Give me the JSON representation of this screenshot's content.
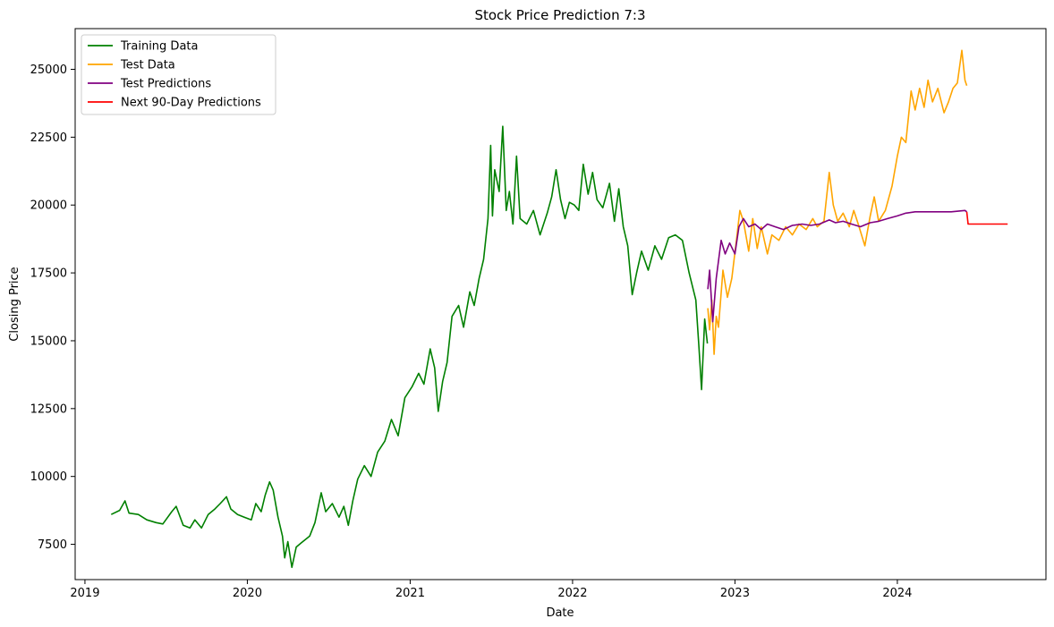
{
  "chart_data": {
    "type": "line",
    "title": "Stock Price Prediction 7:3",
    "xlabel": "Date",
    "ylabel": "Closing Price",
    "xlim": [
      "2018-12-10",
      "2024-11-30"
    ],
    "ylim": [
      6200,
      26500
    ],
    "x_ticks": [
      {
        "value": "2019-01-01",
        "label": "2019"
      },
      {
        "value": "2020-01-01",
        "label": "2020"
      },
      {
        "value": "2021-01-01",
        "label": "2021"
      },
      {
        "value": "2022-01-01",
        "label": "2022"
      },
      {
        "value": "2023-01-01",
        "label": "2023"
      },
      {
        "value": "2024-01-01",
        "label": "2024"
      }
    ],
    "y_ticks": [
      {
        "value": 7500,
        "label": "7500"
      },
      {
        "value": 10000,
        "label": "10000"
      },
      {
        "value": 12500,
        "label": "12500"
      },
      {
        "value": 15000,
        "label": "15000"
      },
      {
        "value": 17500,
        "label": "17500"
      },
      {
        "value": 20000,
        "label": "20000"
      },
      {
        "value": 22500,
        "label": "22500"
      },
      {
        "value": 25000,
        "label": "25000"
      }
    ],
    "grid": false,
    "legend_position": "top-left",
    "series": [
      {
        "name": "Training Data",
        "color": "#008000",
        "points": [
          [
            "2019-03-01",
            8600
          ],
          [
            "2019-03-20",
            8750
          ],
          [
            "2019-04-01",
            9100
          ],
          [
            "2019-04-10",
            8650
          ],
          [
            "2019-05-01",
            8600
          ],
          [
            "2019-05-20",
            8400
          ],
          [
            "2019-06-10",
            8300
          ],
          [
            "2019-06-25",
            8250
          ],
          [
            "2019-07-15",
            8700
          ],
          [
            "2019-07-25",
            8900
          ],
          [
            "2019-08-10",
            8200
          ],
          [
            "2019-08-25",
            8100
          ],
          [
            "2019-09-05",
            8400
          ],
          [
            "2019-09-20",
            8100
          ],
          [
            "2019-10-05",
            8600
          ],
          [
            "2019-10-20",
            8800
          ],
          [
            "2019-11-01",
            9000
          ],
          [
            "2019-11-15",
            9250
          ],
          [
            "2019-11-25",
            8800
          ],
          [
            "2019-12-10",
            8600
          ],
          [
            "2019-12-25",
            8500
          ],
          [
            "2020-01-10",
            8400
          ],
          [
            "2020-01-20",
            9000
          ],
          [
            "2020-02-01",
            8700
          ],
          [
            "2020-02-10",
            9300
          ],
          [
            "2020-02-20",
            9800
          ],
          [
            "2020-02-28",
            9500
          ],
          [
            "2020-03-10",
            8500
          ],
          [
            "2020-03-20",
            7800
          ],
          [
            "2020-03-25",
            7000
          ],
          [
            "2020-04-01",
            7600
          ],
          [
            "2020-04-10",
            6650
          ],
          [
            "2020-04-20",
            7400
          ],
          [
            "2020-05-01",
            7550
          ],
          [
            "2020-05-20",
            7800
          ],
          [
            "2020-06-01",
            8300
          ],
          [
            "2020-06-15",
            9400
          ],
          [
            "2020-06-25",
            8700
          ],
          [
            "2020-07-10",
            9000
          ],
          [
            "2020-07-25",
            8500
          ],
          [
            "2020-08-05",
            8900
          ],
          [
            "2020-08-15",
            8200
          ],
          [
            "2020-08-25",
            9100
          ],
          [
            "2020-09-05",
            9900
          ],
          [
            "2020-09-20",
            10400
          ],
          [
            "2020-10-05",
            10000
          ],
          [
            "2020-10-20",
            10900
          ],
          [
            "2020-11-05",
            11300
          ],
          [
            "2020-11-20",
            12100
          ],
          [
            "2020-12-05",
            11500
          ],
          [
            "2020-12-20",
            12900
          ],
          [
            "2021-01-05",
            13300
          ],
          [
            "2021-01-20",
            13800
          ],
          [
            "2021-02-01",
            13400
          ],
          [
            "2021-02-15",
            14700
          ],
          [
            "2021-02-25",
            14000
          ],
          [
            "2021-03-05",
            12400
          ],
          [
            "2021-03-15",
            13500
          ],
          [
            "2021-03-25",
            14200
          ],
          [
            "2021-04-05",
            15900
          ],
          [
            "2021-04-20",
            16300
          ],
          [
            "2021-05-01",
            15500
          ],
          [
            "2021-05-15",
            16800
          ],
          [
            "2021-05-25",
            16300
          ],
          [
            "2021-06-05",
            17300
          ],
          [
            "2021-06-15",
            18000
          ],
          [
            "2021-06-25",
            19500
          ],
          [
            "2021-07-01",
            22200
          ],
          [
            "2021-07-05",
            19600
          ],
          [
            "2021-07-10",
            21300
          ],
          [
            "2021-07-20",
            20500
          ],
          [
            "2021-07-28",
            22900
          ],
          [
            "2021-08-05",
            19800
          ],
          [
            "2021-08-12",
            20500
          ],
          [
            "2021-08-20",
            19300
          ],
          [
            "2021-08-28",
            21800
          ],
          [
            "2021-09-05",
            19500
          ],
          [
            "2021-09-20",
            19300
          ],
          [
            "2021-10-05",
            19800
          ],
          [
            "2021-10-20",
            18900
          ],
          [
            "2021-11-05",
            19700
          ],
          [
            "2021-11-15",
            20300
          ],
          [
            "2021-11-25",
            21300
          ],
          [
            "2021-12-05",
            20200
          ],
          [
            "2021-12-15",
            19500
          ],
          [
            "2021-12-25",
            20100
          ],
          [
            "2022-01-05",
            20000
          ],
          [
            "2022-01-15",
            19800
          ],
          [
            "2022-01-25",
            21500
          ],
          [
            "2022-02-05",
            20400
          ],
          [
            "2022-02-15",
            21200
          ],
          [
            "2022-02-25",
            20200
          ],
          [
            "2022-03-10",
            19900
          ],
          [
            "2022-03-25",
            20800
          ],
          [
            "2022-04-05",
            19400
          ],
          [
            "2022-04-15",
            20600
          ],
          [
            "2022-04-25",
            19200
          ],
          [
            "2022-05-05",
            18500
          ],
          [
            "2022-05-15",
            16700
          ],
          [
            "2022-05-25",
            17500
          ],
          [
            "2022-06-05",
            18300
          ],
          [
            "2022-06-20",
            17600
          ],
          [
            "2022-07-05",
            18500
          ],
          [
            "2022-07-20",
            18000
          ],
          [
            "2022-08-05",
            18800
          ],
          [
            "2022-08-20",
            18900
          ],
          [
            "2022-09-05",
            18700
          ],
          [
            "2022-09-20",
            17500
          ],
          [
            "2022-10-05",
            16500
          ],
          [
            "2022-10-12",
            14800
          ],
          [
            "2022-10-18",
            13200
          ],
          [
            "2022-10-25",
            15800
          ],
          [
            "2022-10-31",
            14900
          ]
        ]
      },
      {
        "name": "Test Data",
        "color": "#FFA500",
        "points": [
          [
            "2022-11-01",
            16200
          ],
          [
            "2022-11-05",
            15400
          ],
          [
            "2022-11-10",
            16500
          ],
          [
            "2022-11-15",
            14500
          ],
          [
            "2022-11-20",
            15900
          ],
          [
            "2022-11-25",
            15500
          ],
          [
            "2022-12-05",
            17600
          ],
          [
            "2022-12-15",
            16600
          ],
          [
            "2022-12-25",
            17300
          ],
          [
            "2023-01-05",
            18800
          ],
          [
            "2023-01-12",
            19800
          ],
          [
            "2023-01-20",
            19400
          ],
          [
            "2023-02-01",
            18300
          ],
          [
            "2023-02-10",
            19500
          ],
          [
            "2023-02-20",
            18400
          ],
          [
            "2023-03-01",
            19200
          ],
          [
            "2023-03-15",
            18200
          ],
          [
            "2023-03-25",
            18900
          ],
          [
            "2023-04-10",
            18700
          ],
          [
            "2023-04-25",
            19200
          ],
          [
            "2023-05-10",
            18900
          ],
          [
            "2023-05-25",
            19300
          ],
          [
            "2023-06-10",
            19100
          ],
          [
            "2023-06-25",
            19500
          ],
          [
            "2023-07-05",
            19200
          ],
          [
            "2023-07-20",
            19400
          ],
          [
            "2023-08-01",
            21200
          ],
          [
            "2023-08-10",
            20000
          ],
          [
            "2023-08-20",
            19400
          ],
          [
            "2023-09-01",
            19700
          ],
          [
            "2023-09-15",
            19200
          ],
          [
            "2023-09-25",
            19800
          ],
          [
            "2023-10-05",
            19300
          ],
          [
            "2023-10-20",
            18500
          ],
          [
            "2023-11-01",
            19600
          ],
          [
            "2023-11-10",
            20300
          ],
          [
            "2023-11-20",
            19400
          ],
          [
            "2023-12-05",
            19800
          ],
          [
            "2023-12-20",
            20700
          ],
          [
            "2024-01-01",
            21800
          ],
          [
            "2024-01-10",
            22500
          ],
          [
            "2024-01-20",
            22300
          ],
          [
            "2024-02-01",
            24200
          ],
          [
            "2024-02-10",
            23500
          ],
          [
            "2024-02-20",
            24300
          ],
          [
            "2024-03-01",
            23600
          ],
          [
            "2024-03-10",
            24600
          ],
          [
            "2024-03-20",
            23800
          ],
          [
            "2024-04-01",
            24300
          ],
          [
            "2024-04-15",
            23400
          ],
          [
            "2024-04-25",
            23800
          ],
          [
            "2024-05-05",
            24300
          ],
          [
            "2024-05-15",
            24500
          ],
          [
            "2024-05-25",
            25700
          ],
          [
            "2024-06-01",
            24600
          ],
          [
            "2024-06-05",
            24400
          ]
        ]
      },
      {
        "name": "Test Predictions",
        "color": "#800080",
        "points": [
          [
            "2022-11-01",
            16900
          ],
          [
            "2022-11-05",
            17600
          ],
          [
            "2022-11-12",
            15700
          ],
          [
            "2022-11-20",
            17300
          ],
          [
            "2022-12-01",
            18700
          ],
          [
            "2022-12-10",
            18200
          ],
          [
            "2022-12-20",
            18600
          ],
          [
            "2023-01-01",
            18200
          ],
          [
            "2023-01-10",
            19200
          ],
          [
            "2023-01-20",
            19500
          ],
          [
            "2023-02-01",
            19200
          ],
          [
            "2023-02-15",
            19300
          ],
          [
            "2023-03-01",
            19100
          ],
          [
            "2023-03-15",
            19300
          ],
          [
            "2023-04-01",
            19200
          ],
          [
            "2023-04-20",
            19100
          ],
          [
            "2023-05-10",
            19250
          ],
          [
            "2023-06-01",
            19300
          ],
          [
            "2023-06-20",
            19250
          ],
          [
            "2023-07-10",
            19300
          ],
          [
            "2023-08-01",
            19450
          ],
          [
            "2023-08-15",
            19350
          ],
          [
            "2023-09-01",
            19400
          ],
          [
            "2023-09-20",
            19300
          ],
          [
            "2023-10-10",
            19200
          ],
          [
            "2023-11-01",
            19350
          ],
          [
            "2023-11-20",
            19400
          ],
          [
            "2023-12-10",
            19500
          ],
          [
            "2024-01-01",
            19600
          ],
          [
            "2024-01-20",
            19700
          ],
          [
            "2024-02-10",
            19750
          ],
          [
            "2024-03-01",
            19750
          ],
          [
            "2024-04-01",
            19750
          ],
          [
            "2024-05-01",
            19750
          ],
          [
            "2024-06-01",
            19800
          ],
          [
            "2024-06-05",
            19750
          ]
        ]
      },
      {
        "name": "Next 90-Day Predictions",
        "color": "#FF0000",
        "points": [
          [
            "2024-06-05",
            19750
          ],
          [
            "2024-06-08",
            19300
          ],
          [
            "2024-09-05",
            19300
          ]
        ]
      }
    ]
  }
}
